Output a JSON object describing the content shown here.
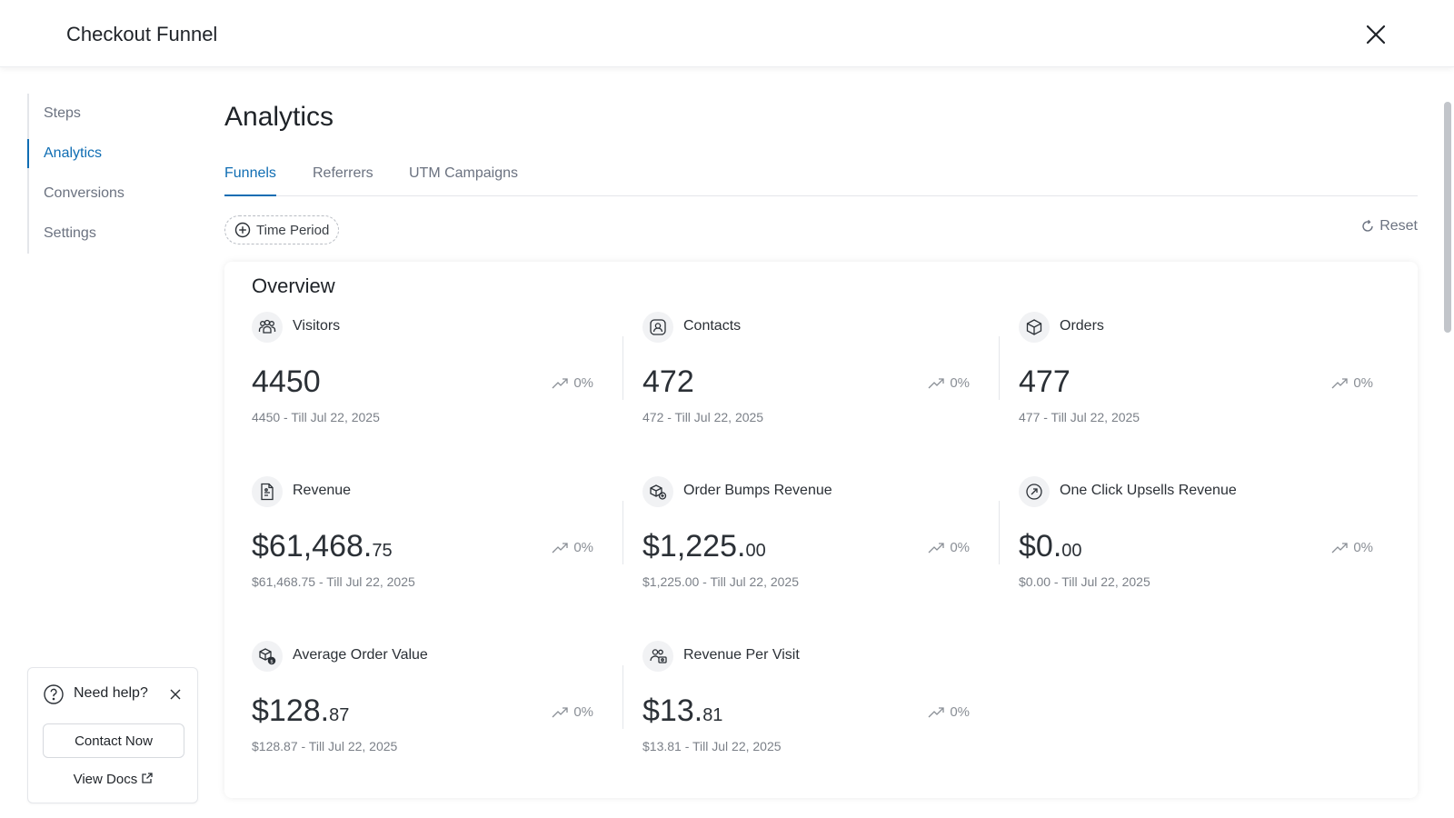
{
  "window": {
    "title": "Checkout Funnel"
  },
  "sidebar": {
    "items": [
      {
        "label": "Steps"
      },
      {
        "label": "Analytics"
      },
      {
        "label": "Conversions"
      },
      {
        "label": "Settings"
      }
    ]
  },
  "main": {
    "title": "Analytics",
    "tabs": [
      {
        "label": "Funnels"
      },
      {
        "label": "Referrers"
      },
      {
        "label": "UTM Campaigns"
      }
    ],
    "time_period_label": "Time Period",
    "reset_label": "Reset"
  },
  "overview": {
    "title": "Overview",
    "metrics": [
      {
        "label": "Visitors",
        "value_main": "4450",
        "value_cents": "",
        "sub": "4450 - Till Jul 22, 2025",
        "trend": "0%",
        "icon": "users-icon"
      },
      {
        "label": "Contacts",
        "value_main": "472",
        "value_cents": "",
        "sub": "472 - Till Jul 22, 2025",
        "trend": "0%",
        "icon": "contact-icon"
      },
      {
        "label": "Orders",
        "value_main": "477",
        "value_cents": "",
        "sub": "477 - Till Jul 22, 2025",
        "trend": "0%",
        "icon": "box-icon"
      },
      {
        "label": "Revenue",
        "value_main": "$61,468.",
        "value_cents": "75",
        "sub": "$61,468.75 - Till Jul 22, 2025",
        "trend": "0%",
        "icon": "receipt-icon"
      },
      {
        "label": "Order Bumps Revenue",
        "value_main": "$1,225.",
        "value_cents": "00",
        "sub": "$1,225.00 - Till Jul 22, 2025",
        "trend": "0%",
        "icon": "bump-icon"
      },
      {
        "label": "One Click Upsells Revenue",
        "value_main": "$0.",
        "value_cents": "00",
        "sub": "$0.00 - Till Jul 22, 2025",
        "trend": "0%",
        "icon": "upsell-icon"
      },
      {
        "label": "Average Order Value",
        "value_main": "$128.",
        "value_cents": "87",
        "sub": "$128.87 - Till Jul 22, 2025",
        "trend": "0%",
        "icon": "box-dollar-icon"
      },
      {
        "label": "Revenue Per Visit",
        "value_main": "$13.",
        "value_cents": "81",
        "sub": "$13.81 - Till Jul 22, 2025",
        "trend": "0%",
        "icon": "visitor-revenue-icon"
      }
    ]
  },
  "help": {
    "title": "Need help?",
    "contact_label": "Contact Now",
    "docs_label": "View Docs"
  },
  "colors": {
    "accent": "#0f6db3",
    "muted": "#6b7280"
  }
}
